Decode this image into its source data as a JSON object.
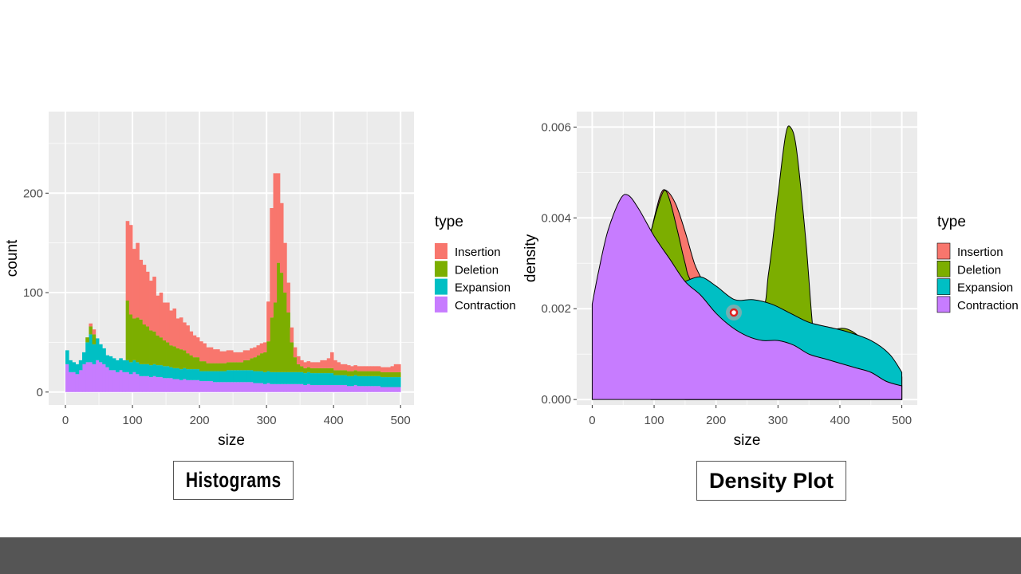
{
  "captions": {
    "left": "Histograms",
    "right": "Density Plot"
  },
  "colors": {
    "panel_bg": "#EBEBEB",
    "grid": "#FFFFFF",
    "footer": "#555555"
  },
  "chart_data": [
    {
      "type": "histogram",
      "stacked": true,
      "xlabel": "size",
      "ylabel": "count",
      "xlim": [
        -25,
        520
      ],
      "ylim": [
        -13,
        282
      ],
      "xticks": [
        0,
        100,
        200,
        300,
        400,
        500
      ],
      "yticks": [
        0,
        100,
        200
      ],
      "grid": true,
      "legend": {
        "title": "type",
        "position": "right"
      },
      "bin_width": 5,
      "bins_start": 0,
      "series": [
        {
          "name": "Contraction",
          "color": "#C77CFF",
          "values": [
            28,
            20,
            20,
            18,
            22,
            28,
            30,
            30,
            28,
            32,
            30,
            28,
            25,
            22,
            22,
            20,
            22,
            20,
            20,
            18,
            20,
            18,
            16,
            16,
            16,
            15,
            16,
            15,
            15,
            14,
            14,
            14,
            13,
            13,
            12,
            13,
            12,
            12,
            12,
            12,
            11,
            11,
            11,
            11,
            10,
            10,
            10,
            10,
            10,
            10,
            10,
            10,
            10,
            10,
            10,
            10,
            9,
            9,
            9,
            8,
            9,
            8,
            8,
            8,
            8,
            8,
            8,
            8,
            8,
            8,
            8,
            7,
            8,
            7,
            7,
            7,
            7,
            7,
            7,
            7,
            7,
            7,
            7,
            7,
            6,
            6,
            7,
            6,
            6,
            6,
            6,
            6,
            6,
            6,
            5,
            5,
            5,
            5,
            5,
            5
          ]
        },
        {
          "name": "Expansion",
          "color": "#00BFC4",
          "values": [
            14,
            12,
            10,
            10,
            10,
            12,
            20,
            28,
            20,
            22,
            18,
            16,
            12,
            14,
            12,
            12,
            12,
            12,
            12,
            12,
            12,
            12,
            12,
            12,
            12,
            12,
            12,
            12,
            12,
            12,
            12,
            11,
            11,
            11,
            11,
            11,
            11,
            11,
            11,
            11,
            10,
            10,
            10,
            10,
            11,
            11,
            11,
            11,
            12,
            12,
            12,
            12,
            12,
            12,
            12,
            12,
            12,
            12,
            12,
            12,
            12,
            12,
            12,
            12,
            12,
            12,
            12,
            12,
            12,
            12,
            12,
            12,
            12,
            12,
            12,
            12,
            12,
            12,
            12,
            12,
            10,
            10,
            10,
            10,
            10,
            10,
            10,
            10,
            10,
            10,
            10,
            10,
            10,
            10,
            10,
            10,
            10,
            10,
            10,
            10
          ]
        },
        {
          "name": "Deletion",
          "color": "#7CAE00",
          "values": [
            0,
            0,
            0,
            0,
            0,
            0,
            5,
            8,
            10,
            0,
            0,
            0,
            0,
            0,
            0,
            0,
            0,
            0,
            60,
            48,
            42,
            45,
            45,
            40,
            38,
            35,
            33,
            30,
            28,
            26,
            24,
            22,
            22,
            20,
            20,
            18,
            16,
            14,
            12,
            12,
            10,
            10,
            8,
            8,
            8,
            8,
            8,
            8,
            8,
            8,
            8,
            8,
            8,
            10,
            10,
            12,
            14,
            16,
            18,
            20,
            30,
            55,
            70,
            110,
            100,
            80,
            60,
            30,
            15,
            8,
            6,
            5,
            5,
            5,
            5,
            5,
            5,
            5,
            5,
            5,
            5,
            5,
            5,
            5,
            5,
            5,
            5,
            5,
            5,
            5,
            5,
            5,
            5,
            5,
            5,
            5,
            5,
            5,
            5,
            5
          ]
        },
        {
          "name": "Insertion",
          "color": "#F8766D",
          "values": [
            0,
            0,
            0,
            0,
            0,
            0,
            0,
            3,
            5,
            0,
            0,
            0,
            0,
            0,
            0,
            0,
            0,
            0,
            80,
            90,
            70,
            75,
            60,
            60,
            55,
            50,
            55,
            40,
            45,
            38,
            40,
            35,
            38,
            30,
            32,
            28,
            28,
            24,
            22,
            20,
            20,
            18,
            16,
            16,
            14,
            14,
            12,
            12,
            12,
            12,
            10,
            10,
            10,
            10,
            10,
            10,
            10,
            10,
            10,
            10,
            40,
            110,
            130,
            90,
            70,
            50,
            30,
            15,
            10,
            8,
            6,
            6,
            6,
            6,
            6,
            6,
            8,
            8,
            10,
            16,
            10,
            8,
            6,
            6,
            6,
            5,
            5,
            5,
            5,
            5,
            5,
            5,
            5,
            5,
            5,
            5,
            5,
            6,
            8,
            8
          ]
        }
      ]
    },
    {
      "type": "area",
      "xlabel": "size",
      "ylabel": "density",
      "xlim": [
        -25,
        525
      ],
      "ylim": [
        -0.00012,
        0.00634
      ],
      "xticks": [
        0,
        100,
        200,
        300,
        400,
        500
      ],
      "yticks": [
        0.0,
        0.002,
        0.004,
        0.006
      ],
      "ytick_labels": [
        "0.000",
        "0.002",
        "0.004",
        "0.006"
      ],
      "grid": true,
      "legend": {
        "title": "type",
        "position": "right"
      },
      "series": [
        {
          "name": "Insertion",
          "color": "#F8766D",
          "points": [
            [
              95,
              0.0037
            ],
            [
              110,
              0.0045
            ],
            [
              120,
              0.0046
            ],
            [
              135,
              0.0043
            ],
            [
              150,
              0.0037
            ],
            [
              165,
              0.003
            ],
            [
              178,
              0.0026
            ],
            [
              185,
              0.0022
            ],
            [
              195,
              0.0016
            ],
            [
              230,
              0.0012
            ],
            [
              300,
              0.0011
            ],
            [
              400,
              0.0009
            ],
            [
              500,
              0.0005
            ]
          ]
        },
        {
          "name": "Deletion",
          "color": "#7CAE00",
          "points": [
            [
              95,
              0.0037
            ],
            [
              105,
              0.0042
            ],
            [
              116,
              0.0046
            ],
            [
              125,
              0.0044
            ],
            [
              138,
              0.0037
            ],
            [
              150,
              0.003
            ],
            [
              160,
              0.0026
            ],
            [
              200,
              0.0018
            ],
            [
              270,
              0.0019
            ],
            [
              285,
              0.0028
            ],
            [
              300,
              0.0045
            ],
            [
              312,
              0.0058
            ],
            [
              320,
              0.006
            ],
            [
              330,
              0.0055
            ],
            [
              345,
              0.0035
            ],
            [
              357,
              0.0015
            ],
            [
              365,
              0.0016
            ],
            [
              380,
              0.0015
            ],
            [
              420,
              0.0015
            ],
            [
              500,
              0.0005
            ]
          ]
        },
        {
          "name": "Expansion",
          "color": "#00BFC4",
          "points": [
            [
              150,
              0.0026
            ],
            [
              175,
              0.0027
            ],
            [
              200,
              0.0025
            ],
            [
              230,
              0.0022
            ],
            [
              260,
              0.0022
            ],
            [
              290,
              0.0021
            ],
            [
              320,
              0.0019
            ],
            [
              350,
              0.0017
            ],
            [
              380,
              0.0016
            ],
            [
              410,
              0.0015
            ],
            [
              450,
              0.0013
            ],
            [
              480,
              0.001
            ],
            [
              500,
              0.0006
            ]
          ]
        },
        {
          "name": "Contraction",
          "color": "#C77CFF",
          "points": [
            [
              0,
              0.0021
            ],
            [
              10,
              0.0028
            ],
            [
              25,
              0.0037
            ],
            [
              45,
              0.0044
            ],
            [
              58,
              0.0045
            ],
            [
              75,
              0.0042
            ],
            [
              100,
              0.0036
            ],
            [
              125,
              0.0031
            ],
            [
              150,
              0.0026
            ],
            [
              175,
              0.0023
            ],
            [
              200,
              0.0019
            ],
            [
              225,
              0.0016
            ],
            [
              250,
              0.0014
            ],
            [
              275,
              0.0013
            ],
            [
              300,
              0.0013
            ],
            [
              325,
              0.0012
            ],
            [
              350,
              0.001
            ],
            [
              375,
              0.0009
            ],
            [
              400,
              0.0008
            ],
            [
              425,
              0.0007
            ],
            [
              450,
              0.0006
            ],
            [
              475,
              0.0004
            ],
            [
              500,
              0.0003
            ]
          ]
        }
      ]
    }
  ]
}
